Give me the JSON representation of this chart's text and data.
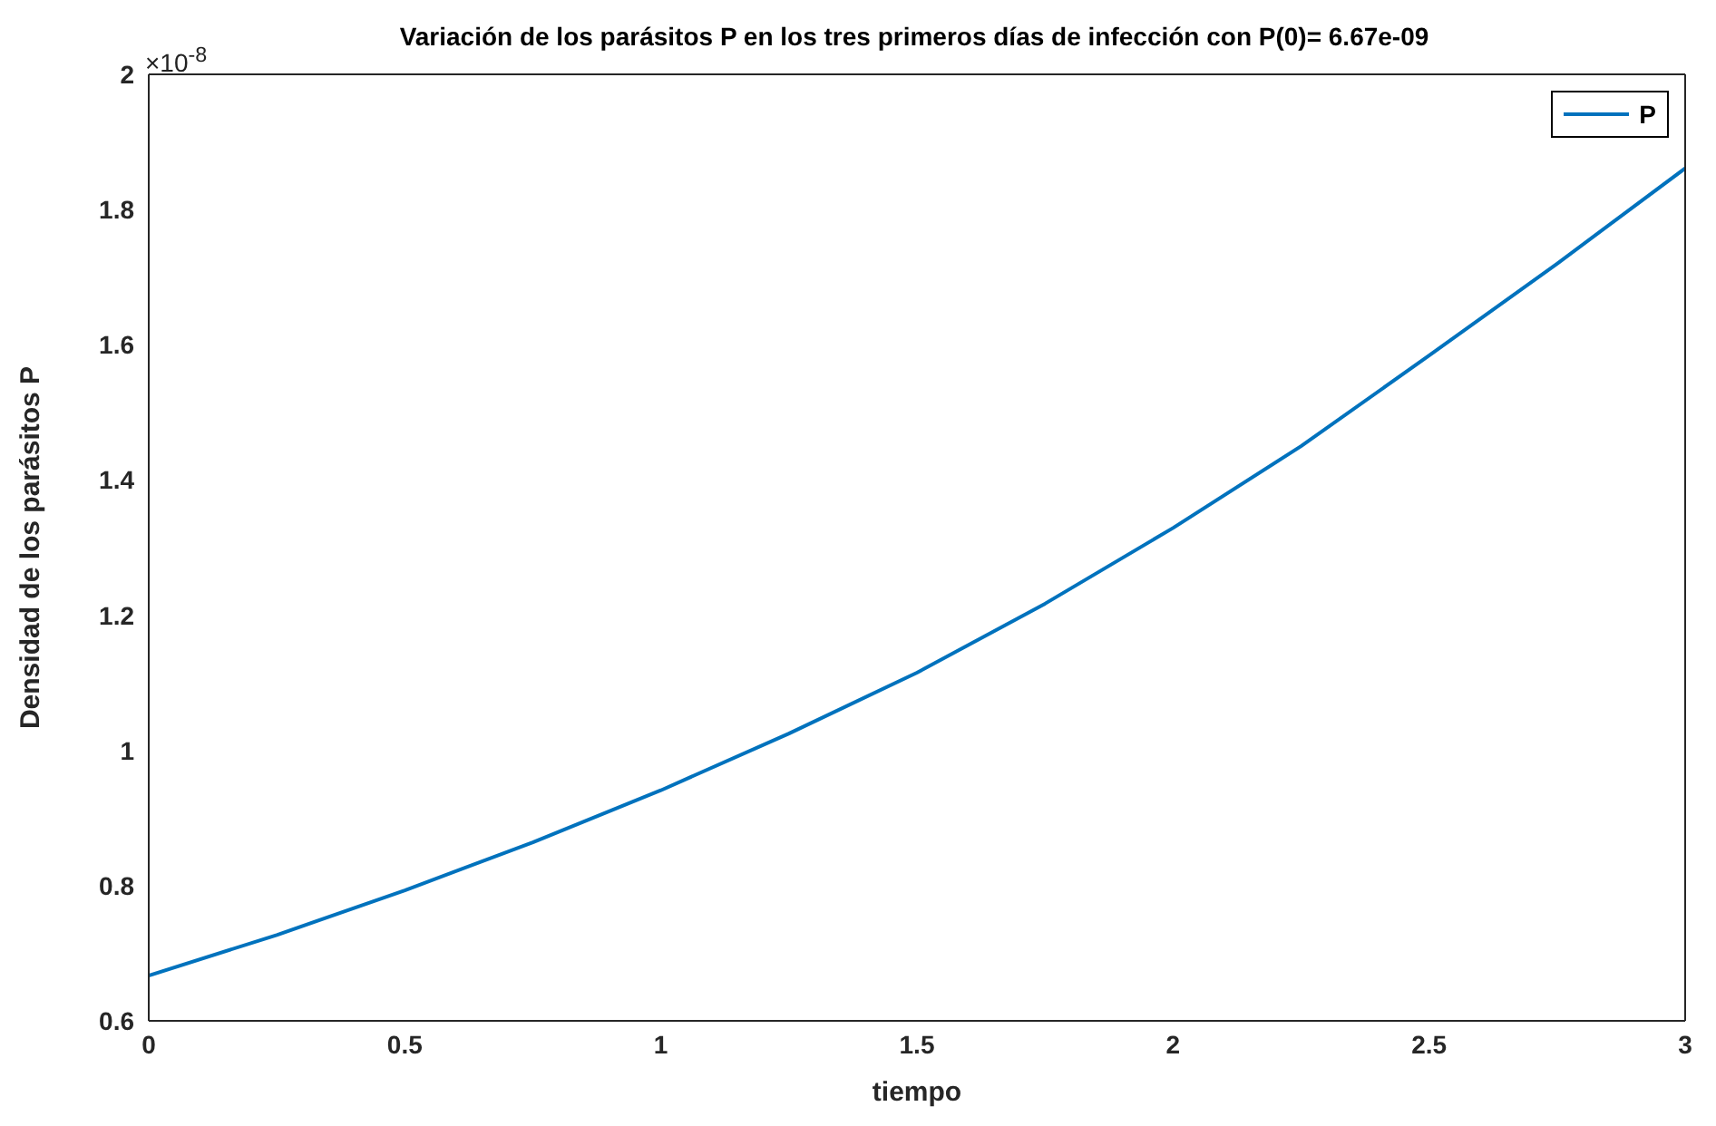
{
  "chart_data": {
    "type": "line",
    "title": "Variación de los parásitos P en los tres primeros días de infección con P(0)= 6.67e-09",
    "xlabel": "tiempo",
    "ylabel": "Densidad de los parásitos P",
    "annotations": [
      "×10$^{-8}$"
    ],
    "x": [
      0,
      0.25,
      0.5,
      0.75,
      1,
      1.25,
      1.5,
      1.75,
      2,
      2.25,
      2.5,
      2.75,
      3
    ],
    "series": [
      {
        "name": "P",
        "color": "#0072bd",
        "values": [
          0.667,
          0.727,
          0.793,
          0.864,
          0.941,
          1.025,
          1.115,
          1.217,
          1.329,
          1.45,
          1.584,
          1.72,
          1.861
        ]
      }
    ],
    "xlim": [
      0,
      3
    ],
    "xticks": [
      0,
      0.5,
      1,
      1.5,
      2,
      2.5,
      3
    ],
    "ylim": [
      0.6,
      2
    ],
    "yticks": [
      0.6,
      0.8,
      1,
      1.2,
      1.4,
      1.6,
      1.8,
      2
    ],
    "grid": false,
    "legend": "top right",
    "marker": "none",
    "line_style": "solid"
  }
}
